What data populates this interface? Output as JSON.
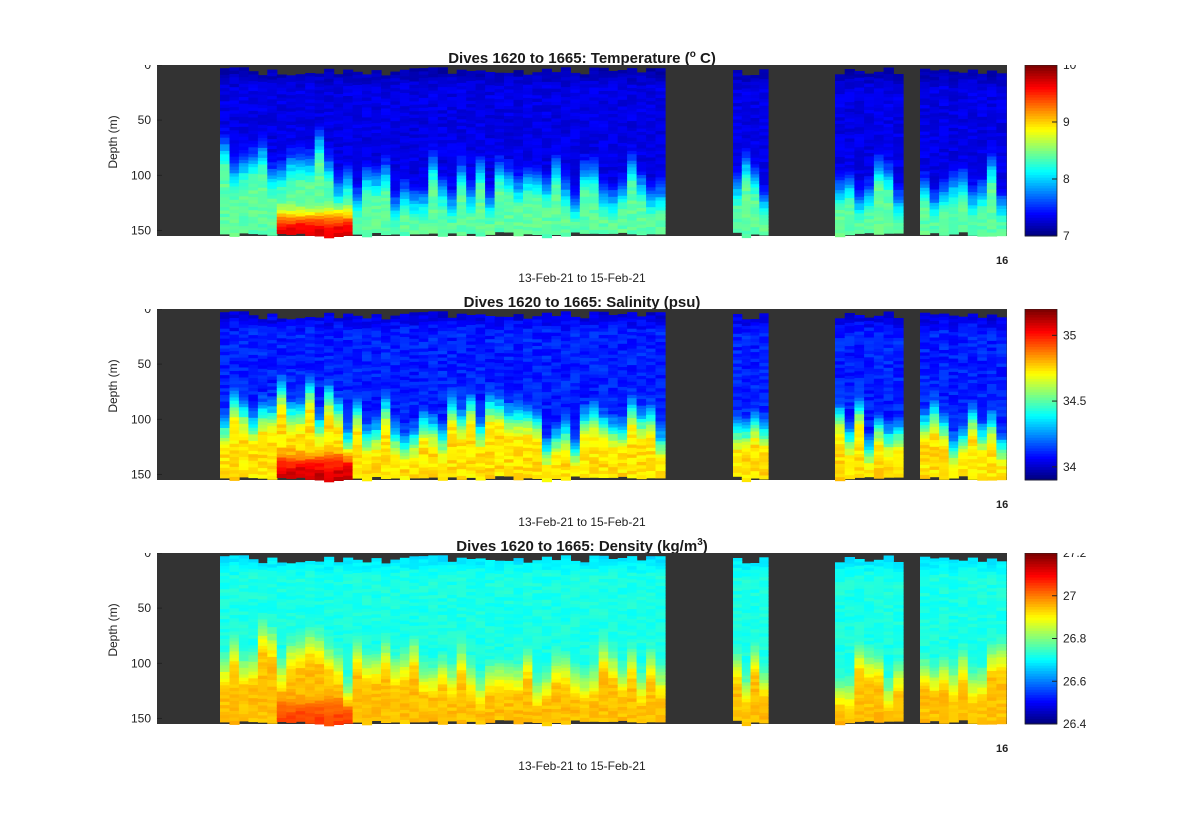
{
  "chart_data": [
    {
      "type": "heatmap",
      "title_pre": "Dives 1620 to 1665: Temperature (",
      "title_sup": "o",
      "title_post": " C)",
      "ylabel": "Depth (m)",
      "xlabel": "13-Feb-21 to 15-Feb-21",
      "x_tick_label": "16",
      "y_ticks": [
        0,
        50,
        100,
        150
      ],
      "ylim": [
        0,
        155
      ],
      "y_reversed": true,
      "colorbar": {
        "ticks": [
          7,
          8,
          9,
          10
        ],
        "range": [
          7,
          10
        ],
        "colormap": "jet"
      },
      "gap_color": "#333333",
      "profile": {
        "surface": 7.1,
        "mid": 7.3,
        "deep": 8.4,
        "max": 9.7
      }
    },
    {
      "type": "heatmap",
      "title_pre": "Dives 1620 to 1665: Salinity (psu)",
      "title_sup": "",
      "title_post": "",
      "ylabel": "Depth (m)",
      "xlabel": "13-Feb-21 to 15-Feb-21",
      "x_tick_label": "16",
      "y_ticks": [
        0,
        50,
        100,
        150
      ],
      "ylim": [
        0,
        155
      ],
      "y_reversed": true,
      "colorbar": {
        "ticks": [
          34,
          34.5,
          35
        ],
        "range": [
          33.9,
          35.2
        ],
        "colormap": "jet"
      },
      "gap_color": "#333333",
      "profile": {
        "surface": 34.0,
        "mid": 34.1,
        "deep": 34.75,
        "max": 35.1
      }
    },
    {
      "type": "heatmap",
      "title_pre": "Dives 1620 to 1665: Density (kg/m",
      "title_sup": "3",
      "title_post": ")",
      "ylabel": "Depth (m)",
      "xlabel": "13-Feb-21 to 15-Feb-21",
      "x_tick_label": "16",
      "y_ticks": [
        0,
        50,
        100,
        150
      ],
      "ylim": [
        0,
        155
      ],
      "y_reversed": true,
      "colorbar": {
        "ticks": [
          26.4,
          26.6,
          26.8,
          27,
          27.2
        ],
        "range": [
          26.4,
          27.2
        ],
        "colormap": "jet"
      },
      "gap_color": "#333333",
      "profile": {
        "surface": 26.67,
        "mid": 26.72,
        "deep": 26.95,
        "max": 27.05
      }
    }
  ]
}
